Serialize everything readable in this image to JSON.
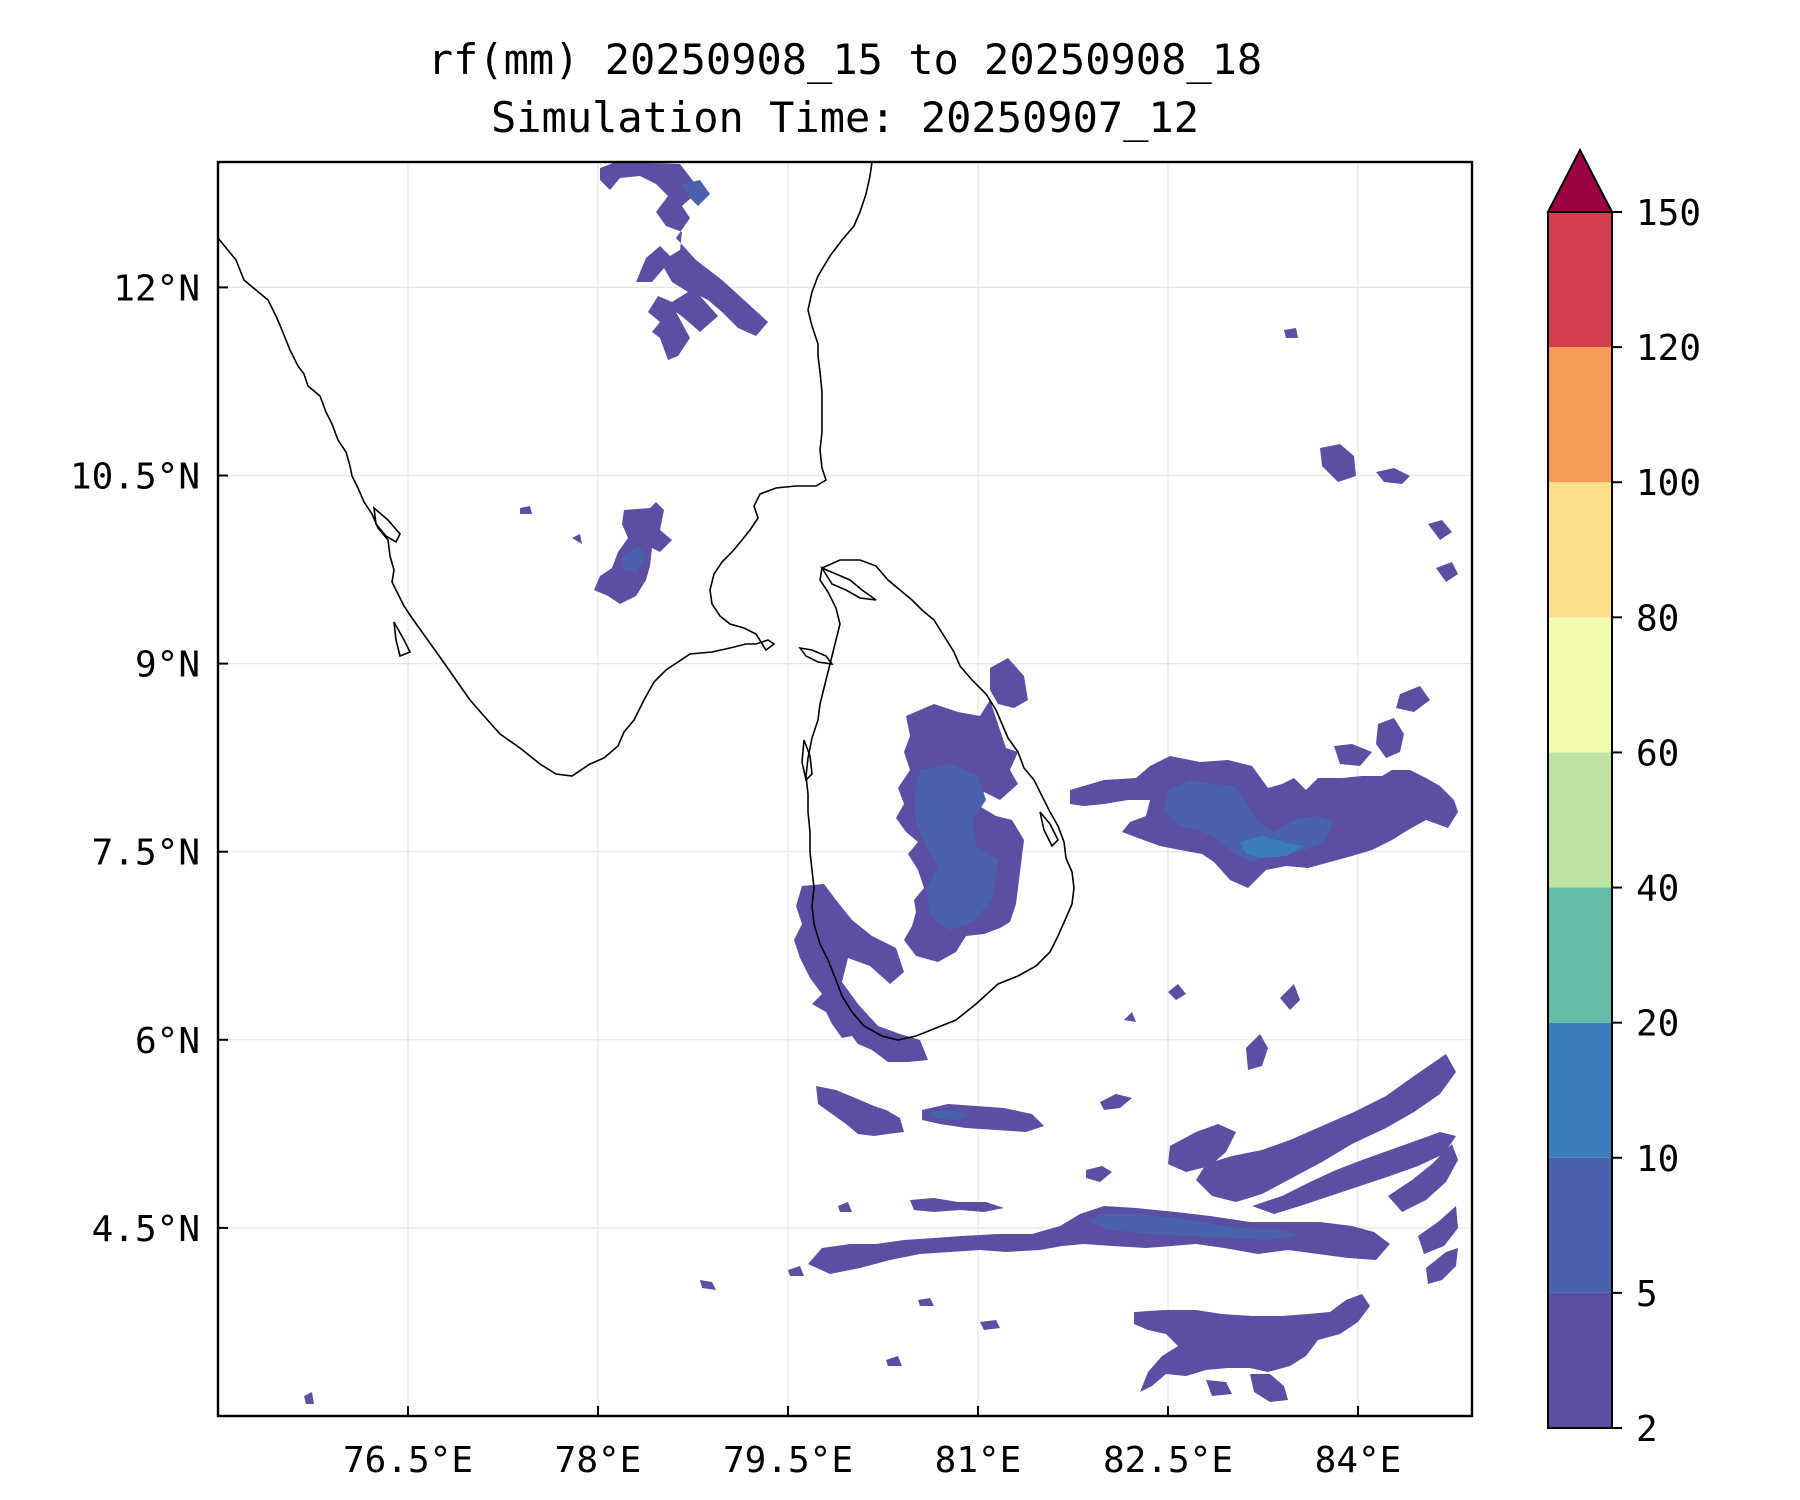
{
  "title": {
    "line1": "rf(mm) 20250908_15 to 20250908_18",
    "line2": "Simulation Time: 20250907_12"
  },
  "map": {
    "lon_range": [
      75.0,
      84.9
    ],
    "lat_range": [
      3.0,
      13.0
    ],
    "x_ticks": [
      {
        "value": 76.5,
        "label": "76.5°E"
      },
      {
        "value": 78.0,
        "label": "78°E"
      },
      {
        "value": 79.5,
        "label": "79.5°E"
      },
      {
        "value": 81.0,
        "label": "81°E"
      },
      {
        "value": 82.5,
        "label": "82.5°E"
      },
      {
        "value": 84.0,
        "label": "84°E"
      }
    ],
    "y_ticks": [
      {
        "value": 12.0,
        "label": "12°N"
      },
      {
        "value": 10.5,
        "label": "10.5°N"
      },
      {
        "value": 9.0,
        "label": "9°N"
      },
      {
        "value": 7.5,
        "label": "7.5°N"
      },
      {
        "value": 6.0,
        "label": "6°N"
      },
      {
        "value": 4.5,
        "label": "4.5°N"
      }
    ],
    "grid": true
  },
  "colorbar": {
    "levels": [
      "2",
      "5",
      "10",
      "20",
      "40",
      "60",
      "80",
      "100",
      "120",
      "150"
    ],
    "colors": [
      "#5a4fa2",
      "#4a62ae",
      "#3a7fbc",
      "#63bca6",
      "#bde2a1",
      "#f2faae",
      "#fbdf8b",
      "#f99c5a",
      "#d43e4f"
    ],
    "extend_color": "#9e0142",
    "extend": "max"
  },
  "chart_data": {
    "type": "heatmap",
    "variable": "rf(mm)",
    "title": "rf(mm) 20250908_15 to 20250908_18",
    "subtitle": "Simulation Time: 20250907_12",
    "levels": [
      2,
      5,
      10,
      20,
      40,
      60,
      80,
      100,
      120,
      150
    ],
    "xlim": [
      75.0,
      84.9
    ],
    "ylim": [
      3.0,
      13.0
    ],
    "regions": [
      {
        "lon": [
          78.1,
          78.4,
          78.7,
          79.0,
          79.3,
          79.6,
          79.3,
          79.0,
          78.9,
          78.3
        ],
        "lat": [
          12.9,
          12.6,
          12.95,
          12.7,
          12.2,
          11.8,
          11.9,
          12.2,
          11.4,
          11.8
        ],
        "band": "2-5"
      },
      {
        "lon": [
          78.0,
          78.3,
          78.5,
          78.6,
          78.4,
          78.0
        ],
        "lat": [
          9.3,
          9.8,
          10.2,
          9.9,
          9.3,
          9.5
        ],
        "band": "2-5"
      },
      {
        "lon": [
          80.6,
          80.9,
          81.2,
          81.3,
          81.4,
          81.2,
          81.0,
          80.8,
          80.6,
          80.5
        ],
        "lat": [
          8.4,
          8.6,
          8.4,
          8.0,
          7.4,
          7.0,
          6.7,
          6.7,
          7.0,
          7.8
        ],
        "band": "5-10"
      },
      {
        "lon": [
          79.7,
          80.0,
          80.3,
          80.6,
          80.5,
          80.2,
          79.8,
          79.5
        ],
        "lat": [
          7.0,
          6.7,
          6.7,
          6.9,
          6.6,
          5.9,
          5.95,
          6.9
        ],
        "band": "2-5"
      },
      {
        "lon": [
          81.8,
          82.5,
          83.3,
          84.0,
          84.8,
          84.9,
          84.2,
          83.3,
          82.6,
          82.0
        ],
        "lat": [
          7.9,
          8.1,
          7.8,
          7.8,
          8.0,
          7.7,
          7.6,
          7.3,
          7.5,
          7.8
        ],
        "band": "5-10"
      },
      {
        "lon": [
          79.9,
          80.5,
          81.0,
          81.6,
          81.0,
          80.4
        ],
        "lat": [
          5.5,
          5.4,
          5.35,
          5.3,
          5.25,
          5.3
        ],
        "band": "2-5"
      },
      {
        "lon": [
          79.9,
          80.8,
          81.6,
          82.4,
          83.4,
          84.2,
          84.9,
          84.3,
          83.4,
          82.3,
          81.0
        ],
        "lat": [
          4.3,
          4.2,
          4.35,
          4.35,
          4.5,
          4.8,
          5.3,
          4.7,
          4.3,
          4.35,
          4.15
        ],
        "band": "5-10"
      },
      {
        "lon": [
          82.8,
          83.6,
          84.4,
          84.9,
          84.4,
          83.3,
          82.9
        ],
        "lat": [
          3.7,
          3.6,
          3.8,
          4.2,
          3.5,
          3.2,
          3.4
        ],
        "band": "2-5"
      }
    ],
    "grid": true,
    "colorbar_extend": "max"
  }
}
